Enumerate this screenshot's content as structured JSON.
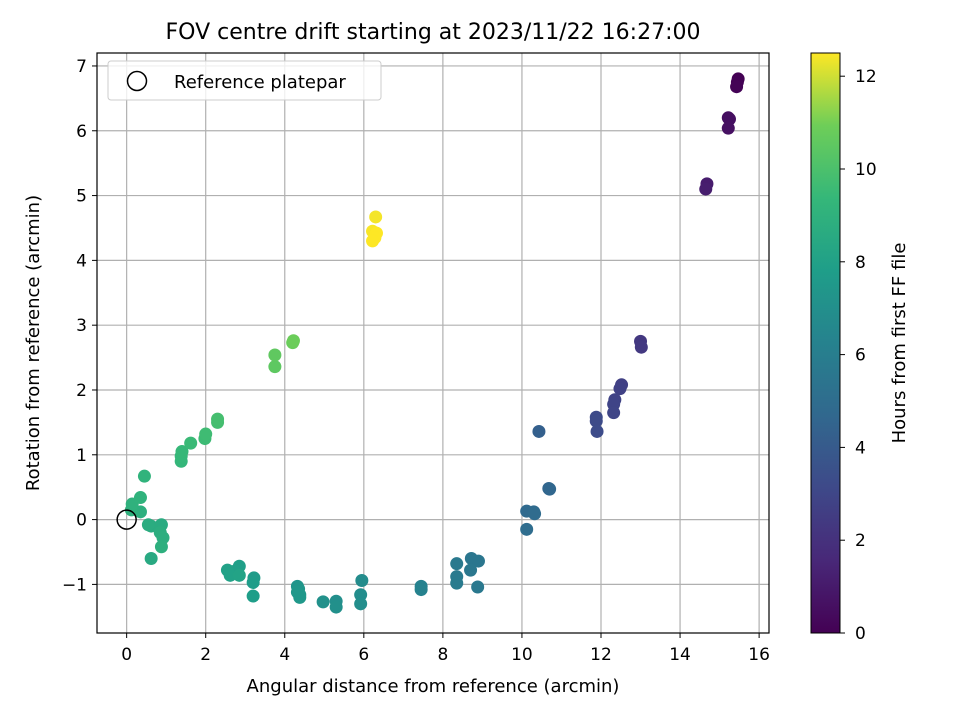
{
  "chart_data": {
    "type": "scatter",
    "title": "FOV centre drift starting at 2023/11/22 16:27:00",
    "xlabel": "Angular distance from reference (arcmin)",
    "ylabel": "Rotation from reference (arcmin)",
    "xlim": [
      -0.75,
      16.25
    ],
    "ylim": [
      -1.75,
      7.2
    ],
    "x_ticks": [
      0,
      2,
      4,
      6,
      8,
      10,
      12,
      14,
      16
    ],
    "y_ticks": [
      -1,
      0,
      1,
      2,
      3,
      4,
      5,
      6,
      7
    ],
    "grid": true,
    "legend": {
      "placement": "upper-left",
      "entries": [
        "Reference platepar"
      ]
    },
    "reference_point": {
      "x": 0,
      "y": 0
    },
    "colorbar": {
      "label": "Hours from first FF file",
      "colormap": "viridis",
      "range": [
        0,
        12.5
      ],
      "ticks": [
        0,
        2,
        4,
        6,
        8,
        10,
        12
      ]
    },
    "points": [
      {
        "x": 15.47,
        "y": 6.8,
        "h": 0.0
      },
      {
        "x": 15.45,
        "y": 6.75,
        "h": 0.05
      },
      {
        "x": 15.43,
        "y": 6.68,
        "h": 0.1
      },
      {
        "x": 15.22,
        "y": 6.2,
        "h": 0.5
      },
      {
        "x": 15.25,
        "y": 6.18,
        "h": 0.55
      },
      {
        "x": 15.22,
        "y": 6.04,
        "h": 0.6
      },
      {
        "x": 14.68,
        "y": 5.18,
        "h": 1.1
      },
      {
        "x": 14.65,
        "y": 5.1,
        "h": 1.15
      },
      {
        "x": 13.0,
        "y": 2.75,
        "h": 2.3
      },
      {
        "x": 13.02,
        "y": 2.66,
        "h": 2.35
      },
      {
        "x": 12.52,
        "y": 2.08,
        "h": 2.7
      },
      {
        "x": 12.48,
        "y": 2.02,
        "h": 2.75
      },
      {
        "x": 12.35,
        "y": 1.85,
        "h": 2.85
      },
      {
        "x": 12.32,
        "y": 1.78,
        "h": 2.9
      },
      {
        "x": 12.32,
        "y": 1.65,
        "h": 2.95
      },
      {
        "x": 11.88,
        "y": 1.58,
        "h": 3.2
      },
      {
        "x": 11.88,
        "y": 1.52,
        "h": 3.25
      },
      {
        "x": 11.9,
        "y": 1.36,
        "h": 3.3
      },
      {
        "x": 10.43,
        "y": 1.36,
        "h": 4.3
      },
      {
        "x": 10.68,
        "y": 0.48,
        "h": 4.6
      },
      {
        "x": 10.7,
        "y": 0.47,
        "h": 4.65
      },
      {
        "x": 10.12,
        "y": 0.13,
        "h": 4.8
      },
      {
        "x": 10.3,
        "y": 0.12,
        "h": 4.85
      },
      {
        "x": 10.32,
        "y": 0.09,
        "h": 4.9
      },
      {
        "x": 10.12,
        "y": -0.15,
        "h": 5.0
      },
      {
        "x": 8.72,
        "y": -0.6,
        "h": 5.5
      },
      {
        "x": 8.9,
        "y": -0.64,
        "h": 5.55
      },
      {
        "x": 8.35,
        "y": -0.68,
        "h": 5.7
      },
      {
        "x": 8.7,
        "y": -0.78,
        "h": 5.6
      },
      {
        "x": 8.35,
        "y": -0.88,
        "h": 5.75
      },
      {
        "x": 8.35,
        "y": -0.98,
        "h": 5.8
      },
      {
        "x": 8.88,
        "y": -1.04,
        "h": 5.65
      },
      {
        "x": 7.45,
        "y": -1.03,
        "h": 6.2
      },
      {
        "x": 7.45,
        "y": -1.08,
        "h": 6.25
      },
      {
        "x": 5.95,
        "y": -0.94,
        "h": 6.8
      },
      {
        "x": 5.92,
        "y": -1.16,
        "h": 6.85
      },
      {
        "x": 5.92,
        "y": -1.3,
        "h": 6.9
      },
      {
        "x": 5.3,
        "y": -1.26,
        "h": 7.0
      },
      {
        "x": 5.3,
        "y": -1.35,
        "h": 7.05
      },
      {
        "x": 4.97,
        "y": -1.27,
        "h": 7.1
      },
      {
        "x": 4.32,
        "y": -1.03,
        "h": 7.3
      },
      {
        "x": 4.35,
        "y": -1.07,
        "h": 7.35
      },
      {
        "x": 4.32,
        "y": -1.12,
        "h": 7.4
      },
      {
        "x": 4.38,
        "y": -1.16,
        "h": 7.45
      },
      {
        "x": 4.38,
        "y": -1.2,
        "h": 7.5
      },
      {
        "x": 3.22,
        "y": -0.9,
        "h": 7.7
      },
      {
        "x": 3.2,
        "y": -0.97,
        "h": 7.75
      },
      {
        "x": 3.2,
        "y": -1.18,
        "h": 7.8
      },
      {
        "x": 2.85,
        "y": -0.72,
        "h": 7.9
      },
      {
        "x": 2.72,
        "y": -0.8,
        "h": 7.95
      },
      {
        "x": 2.55,
        "y": -0.78,
        "h": 8.0
      },
      {
        "x": 2.62,
        "y": -0.86,
        "h": 8.05
      },
      {
        "x": 2.85,
        "y": -0.86,
        "h": 8.1
      },
      {
        "x": 0.62,
        "y": -0.6,
        "h": 8.5
      },
      {
        "x": 0.88,
        "y": -0.08,
        "h": 8.6
      },
      {
        "x": 0.62,
        "y": -0.1,
        "h": 8.65
      },
      {
        "x": 0.55,
        "y": -0.08,
        "h": 8.7
      },
      {
        "x": 0.85,
        "y": -0.2,
        "h": 8.75
      },
      {
        "x": 0.92,
        "y": -0.28,
        "h": 8.8
      },
      {
        "x": 0.88,
        "y": -0.42,
        "h": 8.85
      },
      {
        "x": 0.35,
        "y": 0.12,
        "h": 8.9
      },
      {
        "x": 0.12,
        "y": 0.15,
        "h": 8.95
      },
      {
        "x": 0.14,
        "y": 0.24,
        "h": 9.0
      },
      {
        "x": 0.35,
        "y": 0.34,
        "h": 9.05
      },
      {
        "x": 0.45,
        "y": 0.67,
        "h": 9.1
      },
      {
        "x": 1.38,
        "y": 0.9,
        "h": 9.3
      },
      {
        "x": 1.38,
        "y": 0.98,
        "h": 9.35
      },
      {
        "x": 1.4,
        "y": 1.05,
        "h": 9.4
      },
      {
        "x": 1.62,
        "y": 1.18,
        "h": 9.5
      },
      {
        "x": 1.98,
        "y": 1.25,
        "h": 9.6
      },
      {
        "x": 2.0,
        "y": 1.32,
        "h": 9.65
      },
      {
        "x": 2.3,
        "y": 1.5,
        "h": 9.8
      },
      {
        "x": 2.3,
        "y": 1.55,
        "h": 9.85
      },
      {
        "x": 3.75,
        "y": 2.36,
        "h": 10.5
      },
      {
        "x": 3.75,
        "y": 2.54,
        "h": 10.55
      },
      {
        "x": 4.2,
        "y": 2.73,
        "h": 10.8
      },
      {
        "x": 4.22,
        "y": 2.76,
        "h": 10.85
      },
      {
        "x": 6.3,
        "y": 4.67,
        "h": 12.4
      },
      {
        "x": 6.22,
        "y": 4.45,
        "h": 12.45
      },
      {
        "x": 6.32,
        "y": 4.42,
        "h": 12.5
      },
      {
        "x": 6.28,
        "y": 4.35,
        "h": 12.5
      },
      {
        "x": 6.22,
        "y": 4.3,
        "h": 12.5
      }
    ]
  }
}
